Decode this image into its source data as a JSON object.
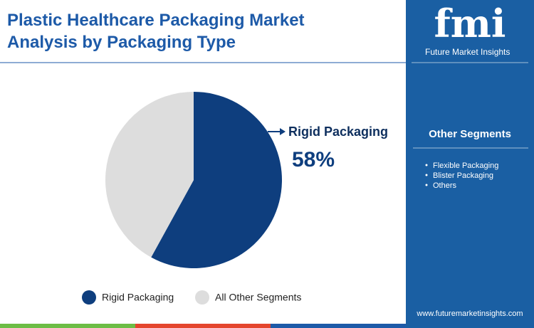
{
  "chart_data": {
    "type": "pie",
    "title": "Plastic Healthcare Packaging Market Analysis by Packaging Type",
    "categories": [
      "Rigid Packaging",
      "All Other Segments"
    ],
    "values": [
      58,
      42
    ],
    "value_labels": [
      "58%",
      null
    ],
    "colors": [
      "#0e3e7e",
      "#dddddd"
    ]
  },
  "sidebar": {
    "logo": "fmi",
    "brand": "Future Market Insights",
    "heading": "Other Segments",
    "items": [
      "Flexible Packaging",
      "Blister Packaging",
      "Others"
    ],
    "url": "www.futuremarketinsights.com"
  }
}
